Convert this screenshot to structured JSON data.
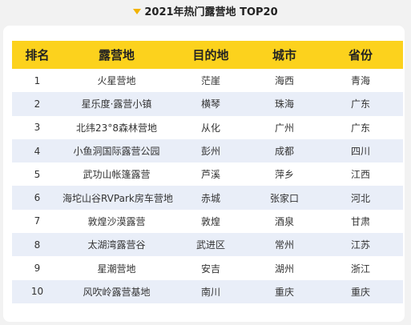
{
  "title": "2021年热门露营地 TOP20",
  "headers": [
    "排名",
    "露营地",
    "目的地",
    "城市",
    "省份"
  ],
  "rows": [
    [
      "1",
      "火星营地",
      "茫崖",
      "海西",
      "青海"
    ],
    [
      "2",
      "星乐度·露营小镇",
      "横琴",
      "珠海",
      "广东"
    ],
    [
      "3",
      "北纬23°8森林营地",
      "从化",
      "广州",
      "广东"
    ],
    [
      "4",
      "小鱼洞国际露营公园",
      "彭州",
      "成都",
      "四川"
    ],
    [
      "5",
      "武功山帐篷露营",
      "芦溪",
      "萍乡",
      "江西"
    ],
    [
      "6",
      "海坨山谷RVPark房车营地",
      "赤城",
      "张家口",
      "河北"
    ],
    [
      "7",
      "敦煌沙漠露营",
      "敦煌",
      "酒泉",
      "甘肃"
    ],
    [
      "8",
      "太湖湾露营谷",
      "武进区",
      "常州",
      "江苏"
    ],
    [
      "9",
      "星潮营地",
      "安吉",
      "湖州",
      "浙江"
    ],
    [
      "10",
      "风吹岭露营基地",
      "南川",
      "重庆",
      "重庆"
    ]
  ],
  "colors": {
    "accent": "#fcd21d",
    "row_shade": "#e9eef8",
    "background": "#f2f2f2"
  }
}
